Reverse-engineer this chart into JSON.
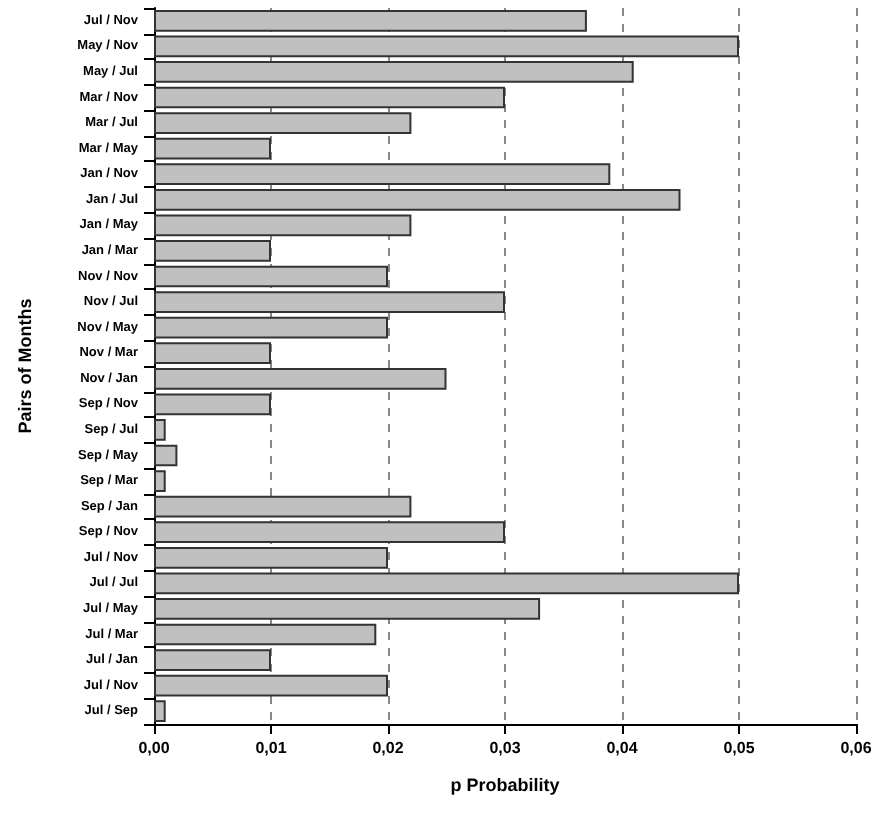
{
  "chart_data": {
    "type": "bar",
    "orientation": "horizontal",
    "xlabel": "p Probability",
    "ylabel": "Pairs of Months",
    "categories": [
      "Jul / Nov",
      "May / Nov",
      "May / Jul",
      "Mar / Nov",
      "Mar / Jul",
      "Mar / May",
      "Jan / Nov",
      "Jan / Jul",
      "Jan / May",
      "Jan / Mar",
      "Nov / Nov",
      "Nov / Jul",
      "Nov / May",
      "Nov / Mar",
      "Nov / Jan",
      "Sep / Nov",
      "Sep / Jul",
      "Sep / May",
      "Sep / Mar",
      "Sep / Jan",
      "Sep / Nov",
      "Jul / Nov",
      "Jul / Jul",
      "Jul / May",
      "Jul / Mar",
      "Jul / Jan",
      "Jul / Nov",
      "Jul / Sep"
    ],
    "values": [
      0.037,
      0.05,
      0.041,
      0.03,
      0.022,
      0.01,
      0.039,
      0.045,
      0.022,
      0.01,
      0.02,
      0.03,
      0.02,
      0.01,
      0.025,
      0.01,
      0.001,
      0.002,
      0.001,
      0.022,
      0.03,
      0.02,
      0.05,
      0.033,
      0.019,
      0.01,
      0.02,
      0.001
    ],
    "color": "#c0c0c0",
    "xlim": [
      0,
      0.06
    ],
    "xticks": [
      {
        "value": 0,
        "label": "0,00"
      },
      {
        "value": 0.01,
        "label": "0,01"
      },
      {
        "value": 0.02,
        "label": "0,02"
      },
      {
        "value": 0.03,
        "label": "0,03"
      },
      {
        "value": 0.04,
        "label": "0,04"
      },
      {
        "value": 0.05,
        "label": "0,05"
      },
      {
        "value": 0.06,
        "label": "0,06"
      }
    ],
    "grid": "x"
  }
}
